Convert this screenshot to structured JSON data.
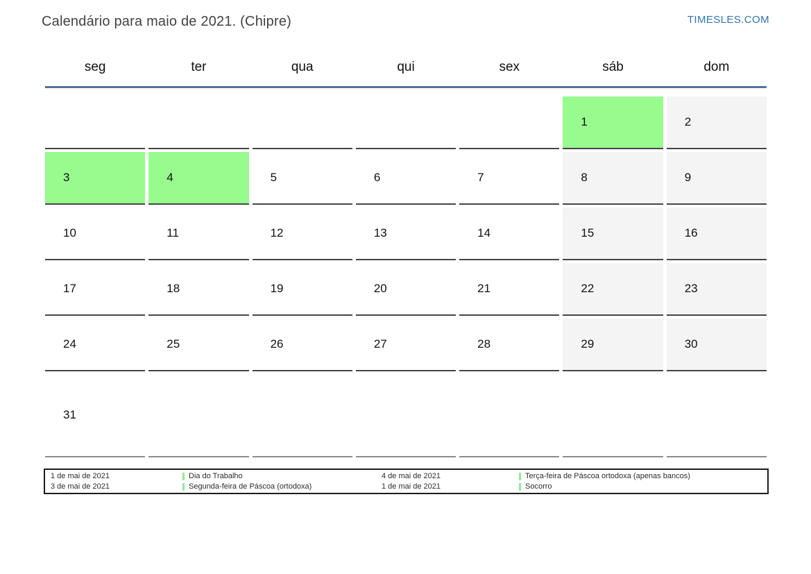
{
  "header": {
    "title": "Calendário para maio de 2021. (Chipre)",
    "site": "TIMESLES.COM"
  },
  "colors": {
    "holiday": "#98fb8e",
    "weekend": "#f4f4f4",
    "header_line": "#53749c",
    "cell_border": "#454545",
    "last_row_border": "#8c8c8c",
    "link": "#2e75bb",
    "legend_border": "#1c1c1c",
    "legend_bar": "#90ee90"
  },
  "weekdays": [
    "seg",
    "ter",
    "qua",
    "qui",
    "sex",
    "sáb",
    "dom"
  ],
  "weeks": [
    [
      {
        "day": "",
        "type": "empty"
      },
      {
        "day": "",
        "type": "empty"
      },
      {
        "day": "",
        "type": "empty"
      },
      {
        "day": "",
        "type": "empty"
      },
      {
        "day": "",
        "type": "empty"
      },
      {
        "day": "1",
        "type": "holiday"
      },
      {
        "day": "2",
        "type": "weekend"
      }
    ],
    [
      {
        "day": "3",
        "type": "holiday"
      },
      {
        "day": "4",
        "type": "holiday"
      },
      {
        "day": "5",
        "type": "normal"
      },
      {
        "day": "6",
        "type": "normal"
      },
      {
        "day": "7",
        "type": "normal"
      },
      {
        "day": "8",
        "type": "weekend"
      },
      {
        "day": "9",
        "type": "weekend"
      }
    ],
    [
      {
        "day": "10",
        "type": "normal"
      },
      {
        "day": "11",
        "type": "normal"
      },
      {
        "day": "12",
        "type": "normal"
      },
      {
        "day": "13",
        "type": "normal"
      },
      {
        "day": "14",
        "type": "normal"
      },
      {
        "day": "15",
        "type": "weekend"
      },
      {
        "day": "16",
        "type": "weekend"
      }
    ],
    [
      {
        "day": "17",
        "type": "normal"
      },
      {
        "day": "18",
        "type": "normal"
      },
      {
        "day": "19",
        "type": "normal"
      },
      {
        "day": "20",
        "type": "normal"
      },
      {
        "day": "21",
        "type": "normal"
      },
      {
        "day": "22",
        "type": "weekend"
      },
      {
        "day": "23",
        "type": "weekend"
      }
    ],
    [
      {
        "day": "24",
        "type": "normal"
      },
      {
        "day": "25",
        "type": "normal"
      },
      {
        "day": "26",
        "type": "normal"
      },
      {
        "day": "27",
        "type": "normal"
      },
      {
        "day": "28",
        "type": "normal"
      },
      {
        "day": "29",
        "type": "weekend"
      },
      {
        "day": "30",
        "type": "weekend"
      }
    ],
    [
      {
        "day": "31",
        "type": "normal"
      },
      {
        "day": "",
        "type": "empty"
      },
      {
        "day": "",
        "type": "empty"
      },
      {
        "day": "",
        "type": "empty"
      },
      {
        "day": "",
        "type": "empty"
      },
      {
        "day": "",
        "type": "empty"
      },
      {
        "day": "",
        "type": "empty"
      }
    ]
  ],
  "legend": {
    "entries": [
      {
        "date": "1 de mai de 2021",
        "label": "Dia do Trabalho"
      },
      {
        "date": "3 de mai de 2021",
        "label": "Segunda-feira de Páscoa (ortodoxa)"
      },
      {
        "date": "4 de mai de 2021",
        "label": "Terça-feira de Páscoa ortodoxa (apenas bancos)"
      },
      {
        "date": "1 de mai de 2021",
        "label": "Socorro"
      }
    ]
  }
}
